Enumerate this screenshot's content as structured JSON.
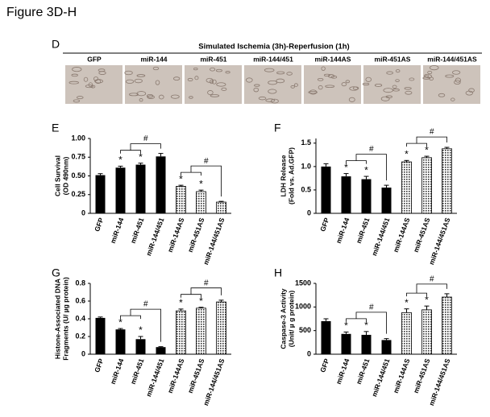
{
  "figure_title": "Figure 3D-H",
  "panel_d": {
    "letter": "D",
    "header": "Simulated Ischemia (3h)-Reperfusion (1h)",
    "labels": [
      "GFP",
      "miR-144",
      "miR-451",
      "miR-144/451",
      "miR-144AS",
      "miR-451AS",
      "miR-144/451AS"
    ]
  },
  "chart_data": [
    {
      "type": "bar",
      "label": "E",
      "ylabel": [
        "Cell Survival",
        "(OD 490nm)"
      ],
      "categories": [
        "GFP",
        "miR-144",
        "miR-451",
        "miR-144/451",
        "miR-144AS",
        "miR-451AS",
        "miR-144/451AS"
      ],
      "values": [
        0.51,
        0.61,
        0.65,
        0.76,
        0.36,
        0.29,
        0.15
      ],
      "errors": [
        0.02,
        0.02,
        0.02,
        0.04,
        0.015,
        0.02,
        0.01
      ],
      "fills": [
        "solid",
        "solid",
        "solid",
        "solid",
        "dotted",
        "dotted",
        "dotted"
      ],
      "markers": [
        null,
        "*",
        "*",
        null,
        "*",
        "*",
        null
      ],
      "brackets": [
        {
          "text": "#",
          "left": [
            "miR-144",
            "miR-451"
          ],
          "right": "miR-144/451"
        },
        {
          "text": "#",
          "left": [
            "miR-144AS",
            "miR-451AS"
          ],
          "right": "miR-144/451AS"
        }
      ],
      "ylim": [
        0,
        1
      ],
      "yticks": [
        0,
        0.25,
        {
          "value": 0.5,
          "label": "0.50"
        },
        0.75,
        {
          "value": 1,
          "label": "1.00"
        }
      ]
    },
    {
      "type": "bar",
      "label": "F",
      "ylabel": [
        "LDH Release",
        "(Fold vs. Ad.GFP)"
      ],
      "categories": [
        "GFP",
        "miR-144",
        "miR-451",
        "miR-144/451",
        "miR-144AS",
        "miR-451AS",
        "miR-144/451AS"
      ],
      "values": [
        1.0,
        0.79,
        0.73,
        0.55,
        1.1,
        1.19,
        1.38
      ],
      "errors": [
        0.06,
        0.06,
        0.06,
        0.05,
        0.03,
        0.03,
        0.03
      ],
      "fills": [
        "solid",
        "solid",
        "solid",
        "solid",
        "dotted",
        "dotted",
        "dotted"
      ],
      "markers": [
        null,
        "*",
        "*",
        null,
        "*",
        "*",
        null
      ],
      "brackets": [
        {
          "text": "#",
          "left": [
            "miR-144",
            "miR-451"
          ],
          "right": "miR-144/451"
        },
        {
          "text": "#",
          "left": [
            "miR-144AS",
            "miR-451AS"
          ],
          "right": "miR-144/451AS"
        }
      ],
      "ylim": [
        0,
        1.6
      ],
      "yticks": [
        0,
        0.5,
        {
          "value": 1,
          "label": "1.0"
        },
        1.5
      ]
    },
    {
      "type": "bar",
      "label": "G",
      "ylabel": [
        "Histone-Associated DNA",
        "Fragments (U/ µg protein)"
      ],
      "categories": [
        "GFP",
        "miR-144",
        "miR-451",
        "miR-144/451",
        "miR-144AS",
        "miR-451AS",
        "miR-144/451AS"
      ],
      "values": [
        0.41,
        0.28,
        0.17,
        0.08,
        0.49,
        0.52,
        0.59
      ],
      "errors": [
        0.01,
        0.01,
        0.03,
        0.005,
        0.02,
        0.01,
        0.02
      ],
      "fills": [
        "solid",
        "solid",
        "solid",
        "solid",
        "dotted",
        "dotted",
        "dotted"
      ],
      "markers": [
        null,
        "*",
        "*",
        null,
        "*",
        "*",
        null
      ],
      "brackets": [
        {
          "text": "#",
          "left": [
            "miR-144",
            "miR-451"
          ],
          "right": "miR-144/451"
        },
        {
          "text": "#",
          "left": [
            "miR-144AS",
            "miR-451AS"
          ],
          "right": "miR-144/451AS"
        }
      ],
      "ylim": [
        0,
        0.8
      ],
      "yticks": [
        0,
        0.2,
        0.4,
        0.6,
        0.8
      ]
    },
    {
      "type": "bar",
      "label": "H",
      "ylabel": [
        "Caspase-3 Activity",
        "(Unit/ µ g protein)"
      ],
      "categories": [
        "GFP",
        "miR-144",
        "miR-451",
        "miR-144/451",
        "miR-144AS",
        "miR-451AS",
        "miR-144/451AS"
      ],
      "values": [
        700,
        430,
        410,
        300,
        880,
        940,
        1210
      ],
      "errors": [
        50,
        40,
        70,
        30,
        80,
        80,
        70
      ],
      "fills": [
        "solid",
        "solid",
        "solid",
        "solid",
        "dotted",
        "dotted",
        "dotted"
      ],
      "markers": [
        null,
        "*",
        "*",
        null,
        "*",
        "*",
        null
      ],
      "brackets": [
        {
          "text": "#",
          "left": [
            "miR-144",
            "miR-451"
          ],
          "right": "miR-144/451"
        },
        {
          "text": "#",
          "left": [
            "miR-144AS",
            "miR-451AS"
          ],
          "right": "miR-144/451AS"
        }
      ],
      "ylim": [
        0,
        1500
      ],
      "yticks": [
        0,
        500,
        1000,
        1500
      ]
    }
  ]
}
